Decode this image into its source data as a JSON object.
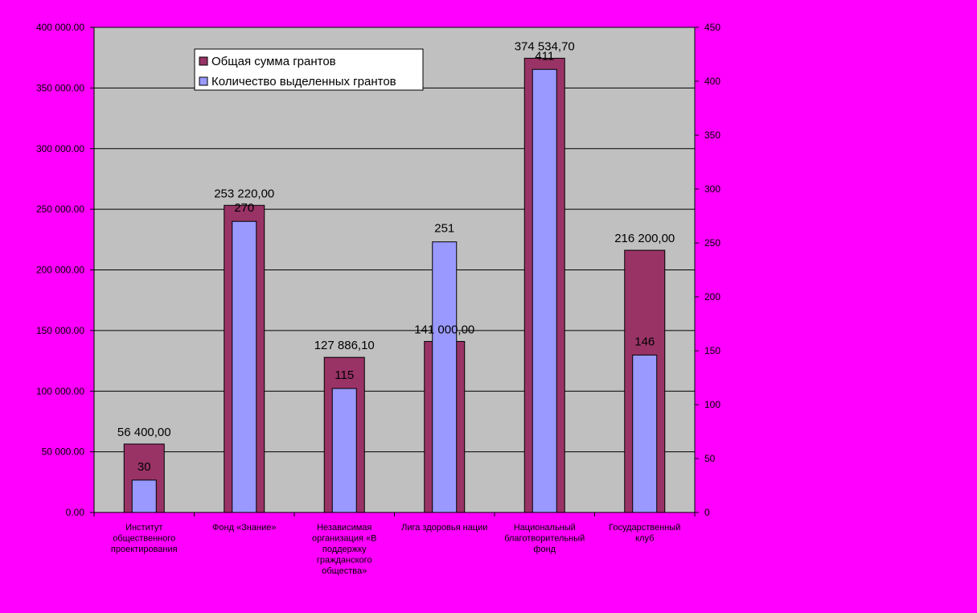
{
  "chart_data": {
    "type": "bar",
    "categories": [
      [
        "Институт",
        "общественного",
        "проектирования"
      ],
      [
        "Фонд «Знание»"
      ],
      [
        "Независимая",
        "организация «В",
        "поддержку",
        "гражданского",
        "общества»"
      ],
      [
        "Лига здоровья нации"
      ],
      [
        "Национальный",
        "благотворительный",
        "фонд"
      ],
      [
        "Государственный",
        "клуб"
      ]
    ],
    "series": [
      {
        "name": "Общая сумма грантов",
        "axis": "left",
        "values": [
          56400,
          253220,
          127886.1,
          141000,
          374534.7,
          216200
        ],
        "labels": [
          "56 400,00",
          "253 220,00",
          "127 886,10",
          "141 000,00",
          "374 534,70",
          "216 200,00"
        ],
        "color": "#993366"
      },
      {
        "name": "Количество выделенных грантов",
        "axis": "right",
        "values": [
          30,
          270,
          115,
          251,
          411,
          146
        ],
        "labels": [
          "30",
          "270",
          "115",
          "251",
          "411",
          "146"
        ],
        "color": "#9999ff"
      }
    ],
    "y_left": {
      "ylim": [
        0,
        400000
      ],
      "ticks": [
        "0.00",
        "50 000.00",
        "100 000.00",
        "150 000.00",
        "200 000.00",
        "250 000.00",
        "300 000.00",
        "350 000.00",
        "400 000.00"
      ]
    },
    "y_right": {
      "ylim": [
        0,
        450
      ],
      "ticks": [
        "0",
        "50",
        "100",
        "150",
        "200",
        "250",
        "300",
        "350",
        "400",
        "450"
      ]
    },
    "grid": true,
    "legend_position": "top-left",
    "plot_background": "#c0c0c0",
    "page_background": "#ff00ff"
  }
}
